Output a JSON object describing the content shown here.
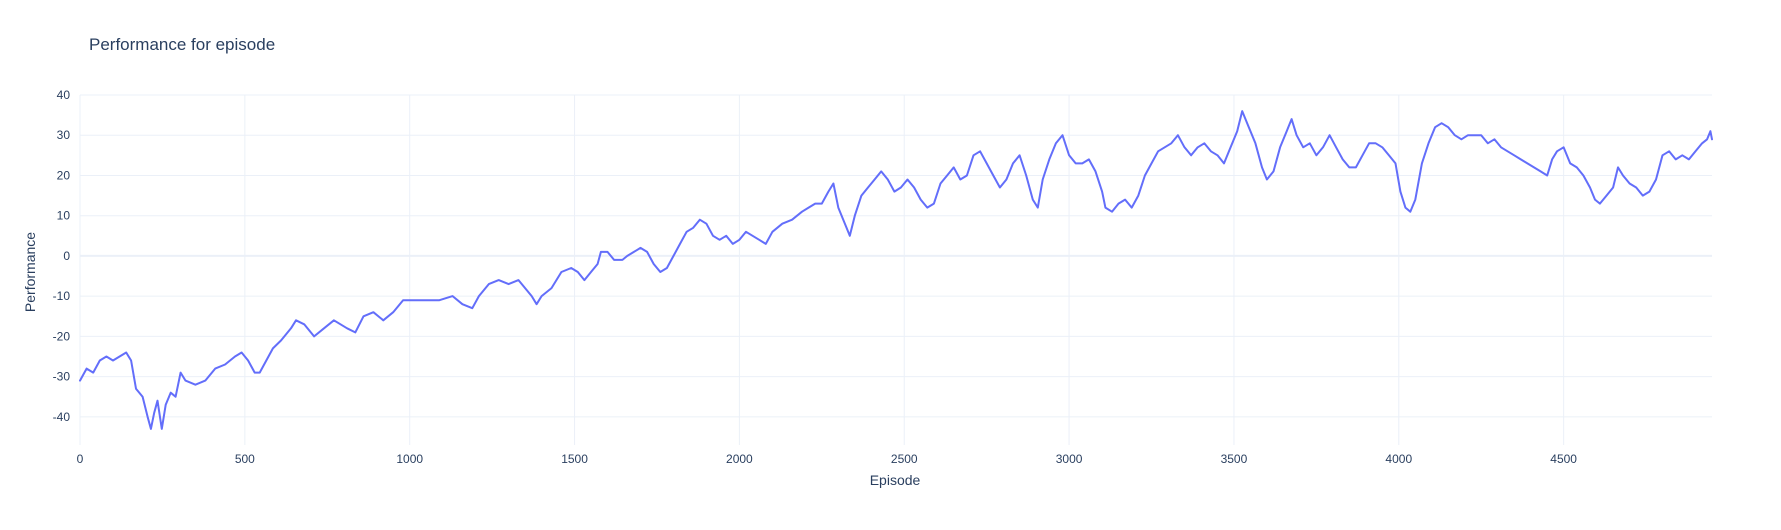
{
  "chart_data": {
    "type": "line",
    "title": "Performance for episode",
    "xlabel": "Episode",
    "ylabel": "Performance",
    "xlim": [
      0,
      4950
    ],
    "ylim": [
      -47,
      40
    ],
    "xticks": [
      0,
      500,
      1000,
      1500,
      2000,
      2500,
      3000,
      3500,
      4000,
      4500
    ],
    "yticks": [
      -40,
      -30,
      -20,
      -10,
      0,
      10,
      20,
      30,
      40
    ],
    "grid": true,
    "legend": "none",
    "series": [
      {
        "color": "#636efa",
        "points": [
          [
            0,
            -31
          ],
          [
            20,
            -28
          ],
          [
            40,
            -29
          ],
          [
            60,
            -26
          ],
          [
            80,
            -25
          ],
          [
            100,
            -26
          ],
          [
            120,
            -25
          ],
          [
            140,
            -24
          ],
          [
            155,
            -26
          ],
          [
            170,
            -33
          ],
          [
            190,
            -35
          ],
          [
            205,
            -40
          ],
          [
            215,
            -43
          ],
          [
            225,
            -39
          ],
          [
            235,
            -36
          ],
          [
            248,
            -43
          ],
          [
            260,
            -37
          ],
          [
            275,
            -34
          ],
          [
            290,
            -35
          ],
          [
            305,
            -29
          ],
          [
            320,
            -31
          ],
          [
            350,
            -32
          ],
          [
            380,
            -31
          ],
          [
            410,
            -28
          ],
          [
            440,
            -27
          ],
          [
            470,
            -25
          ],
          [
            490,
            -24
          ],
          [
            510,
            -26
          ],
          [
            530,
            -29
          ],
          [
            545,
            -29
          ],
          [
            565,
            -26
          ],
          [
            585,
            -23
          ],
          [
            610,
            -21
          ],
          [
            640,
            -18
          ],
          [
            655,
            -16
          ],
          [
            680,
            -17
          ],
          [
            710,
            -20
          ],
          [
            740,
            -18
          ],
          [
            770,
            -16
          ],
          [
            790,
            -17
          ],
          [
            810,
            -18
          ],
          [
            835,
            -19
          ],
          [
            860,
            -15
          ],
          [
            890,
            -14
          ],
          [
            920,
            -16
          ],
          [
            950,
            -14
          ],
          [
            980,
            -11
          ],
          [
            1010,
            -11
          ],
          [
            1050,
            -11
          ],
          [
            1090,
            -11
          ],
          [
            1130,
            -10
          ],
          [
            1160,
            -12
          ],
          [
            1190,
            -13
          ],
          [
            1210,
            -10
          ],
          [
            1240,
            -7
          ],
          [
            1270,
            -6
          ],
          [
            1300,
            -7
          ],
          [
            1330,
            -6
          ],
          [
            1350,
            -8
          ],
          [
            1370,
            -10
          ],
          [
            1385,
            -12
          ],
          [
            1400,
            -10
          ],
          [
            1430,
            -8
          ],
          [
            1460,
            -4
          ],
          [
            1490,
            -3
          ],
          [
            1510,
            -4
          ],
          [
            1530,
            -6
          ],
          [
            1550,
            -4
          ],
          [
            1570,
            -2
          ],
          [
            1580,
            1
          ],
          [
            1600,
            1
          ],
          [
            1620,
            -1
          ],
          [
            1645,
            -1
          ],
          [
            1660,
            0
          ],
          [
            1680,
            1
          ],
          [
            1700,
            2
          ],
          [
            1720,
            1
          ],
          [
            1740,
            -2
          ],
          [
            1760,
            -4
          ],
          [
            1780,
            -3
          ],
          [
            1800,
            0
          ],
          [
            1820,
            3
          ],
          [
            1840,
            6
          ],
          [
            1860,
            7
          ],
          [
            1880,
            9
          ],
          [
            1900,
            8
          ],
          [
            1920,
            5
          ],
          [
            1940,
            4
          ],
          [
            1960,
            5
          ],
          [
            1980,
            3
          ],
          [
            2000,
            4
          ],
          [
            2020,
            6
          ],
          [
            2040,
            5
          ],
          [
            2060,
            4
          ],
          [
            2080,
            3
          ],
          [
            2100,
            6
          ],
          [
            2130,
            8
          ],
          [
            2160,
            9
          ],
          [
            2190,
            11
          ],
          [
            2210,
            12
          ],
          [
            2230,
            13
          ],
          [
            2250,
            13
          ],
          [
            2270,
            16
          ],
          [
            2285,
            18
          ],
          [
            2300,
            12
          ],
          [
            2320,
            8
          ],
          [
            2335,
            5
          ],
          [
            2350,
            10
          ],
          [
            2370,
            15
          ],
          [
            2390,
            17
          ],
          [
            2410,
            19
          ],
          [
            2430,
            21
          ],
          [
            2450,
            19
          ],
          [
            2470,
            16
          ],
          [
            2490,
            17
          ],
          [
            2510,
            19
          ],
          [
            2530,
            17
          ],
          [
            2550,
            14
          ],
          [
            2570,
            12
          ],
          [
            2590,
            13
          ],
          [
            2610,
            18
          ],
          [
            2630,
            20
          ],
          [
            2650,
            22
          ],
          [
            2670,
            19
          ],
          [
            2690,
            20
          ],
          [
            2710,
            25
          ],
          [
            2730,
            26
          ],
          [
            2750,
            23
          ],
          [
            2770,
            20
          ],
          [
            2790,
            17
          ],
          [
            2810,
            19
          ],
          [
            2830,
            23
          ],
          [
            2850,
            25
          ],
          [
            2870,
            20
          ],
          [
            2890,
            14
          ],
          [
            2905,
            12
          ],
          [
            2920,
            19
          ],
          [
            2940,
            24
          ],
          [
            2960,
            28
          ],
          [
            2980,
            30
          ],
          [
            3000,
            25
          ],
          [
            3020,
            23
          ],
          [
            3040,
            23
          ],
          [
            3060,
            24
          ],
          [
            3080,
            21
          ],
          [
            3100,
            16
          ],
          [
            3110,
            12
          ],
          [
            3130,
            11
          ],
          [
            3150,
            13
          ],
          [
            3170,
            14
          ],
          [
            3190,
            12
          ],
          [
            3210,
            15
          ],
          [
            3230,
            20
          ],
          [
            3250,
            23
          ],
          [
            3270,
            26
          ],
          [
            3290,
            27
          ],
          [
            3310,
            28
          ],
          [
            3330,
            30
          ],
          [
            3350,
            27
          ],
          [
            3370,
            25
          ],
          [
            3390,
            27
          ],
          [
            3410,
            28
          ],
          [
            3430,
            26
          ],
          [
            3450,
            25
          ],
          [
            3470,
            23
          ],
          [
            3490,
            27
          ],
          [
            3510,
            31
          ],
          [
            3525,
            36
          ],
          [
            3545,
            32
          ],
          [
            3565,
            28
          ],
          [
            3585,
            22
          ],
          [
            3600,
            19
          ],
          [
            3620,
            21
          ],
          [
            3640,
            27
          ],
          [
            3660,
            31
          ],
          [
            3675,
            34
          ],
          [
            3690,
            30
          ],
          [
            3710,
            27
          ],
          [
            3730,
            28
          ],
          [
            3750,
            25
          ],
          [
            3770,
            27
          ],
          [
            3790,
            30
          ],
          [
            3810,
            27
          ],
          [
            3830,
            24
          ],
          [
            3850,
            22
          ],
          [
            3870,
            22
          ],
          [
            3890,
            25
          ],
          [
            3910,
            28
          ],
          [
            3930,
            28
          ],
          [
            3950,
            27
          ],
          [
            3970,
            25
          ],
          [
            3990,
            23
          ],
          [
            4005,
            16
          ],
          [
            4020,
            12
          ],
          [
            4035,
            11
          ],
          [
            4050,
            14
          ],
          [
            4070,
            23
          ],
          [
            4090,
            28
          ],
          [
            4110,
            32
          ],
          [
            4130,
            33
          ],
          [
            4150,
            32
          ],
          [
            4170,
            30
          ],
          [
            4190,
            29
          ],
          [
            4210,
            30
          ],
          [
            4230,
            30
          ],
          [
            4250,
            30
          ],
          [
            4270,
            28
          ],
          [
            4290,
            29
          ],
          [
            4310,
            27
          ],
          [
            4330,
            26
          ],
          [
            4350,
            25
          ],
          [
            4370,
            24
          ],
          [
            4390,
            23
          ],
          [
            4410,
            22
          ],
          [
            4430,
            21
          ],
          [
            4450,
            20
          ],
          [
            4465,
            24
          ],
          [
            4480,
            26
          ],
          [
            4500,
            27
          ],
          [
            4520,
            23
          ],
          [
            4540,
            22
          ],
          [
            4560,
            20
          ],
          [
            4580,
            17
          ],
          [
            4595,
            14
          ],
          [
            4610,
            13
          ],
          [
            4630,
            15
          ],
          [
            4650,
            17
          ],
          [
            4665,
            22
          ],
          [
            4680,
            20
          ],
          [
            4700,
            18
          ],
          [
            4720,
            17
          ],
          [
            4740,
            15
          ],
          [
            4760,
            16
          ],
          [
            4780,
            19
          ],
          [
            4800,
            25
          ],
          [
            4820,
            26
          ],
          [
            4840,
            24
          ],
          [
            4860,
            25
          ],
          [
            4880,
            24
          ],
          [
            4900,
            26
          ],
          [
            4920,
            28
          ],
          [
            4935,
            29
          ],
          [
            4945,
            31
          ],
          [
            4950,
            29
          ]
        ]
      }
    ]
  }
}
